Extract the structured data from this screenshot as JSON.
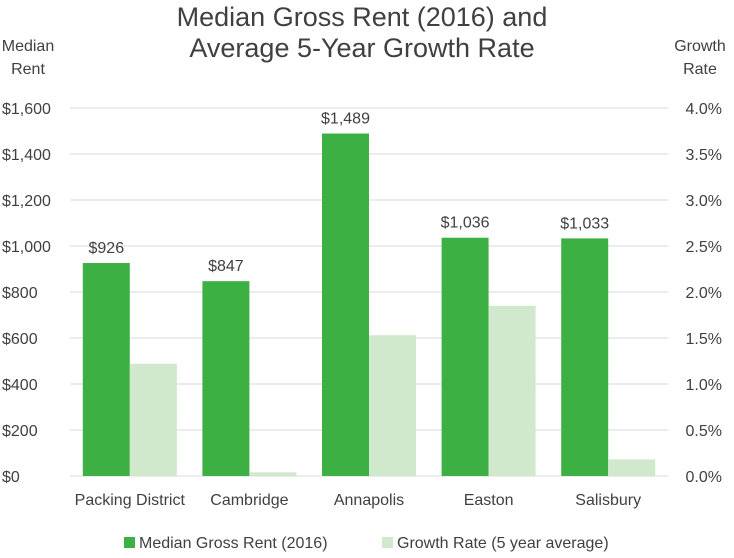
{
  "chart_data": {
    "type": "bar",
    "title_lines": [
      "Median Gross Rent (2016) and",
      "Average 5-Year Growth Rate"
    ],
    "y_left_label_lines": [
      "Median",
      "Rent"
    ],
    "y_right_label_lines": [
      "Growth",
      "Rate"
    ],
    "categories": [
      "Packing District",
      "Cambridge",
      "Annapolis",
      "Easton",
      "Salisbury"
    ],
    "series": [
      {
        "name": "Median Gross Rent (2016)",
        "axis": "left",
        "color": "#3cb043",
        "values": [
          926,
          847,
          1489,
          1036,
          1033
        ],
        "data_labels": [
          "$926",
          "$847",
          "$1,489",
          "$1,036",
          "$1,033"
        ]
      },
      {
        "name": "Growth Rate (5 year average)",
        "axis": "right",
        "color": "#d0e8cc",
        "values": [
          1.22,
          0.04,
          1.53,
          1.85,
          0.18
        ]
      }
    ],
    "y_left": {
      "min": 0,
      "max": 1600,
      "ticks": [
        0,
        200,
        400,
        600,
        800,
        1000,
        1200,
        1400,
        1600
      ],
      "tick_labels": [
        "$0",
        "$200",
        "$400",
        "$600",
        "$800",
        "$1,000",
        "$1,200",
        "$1,400",
        "$1,600"
      ]
    },
    "y_right": {
      "min": 0,
      "max": 4.0,
      "ticks": [
        0,
        0.5,
        1.0,
        1.5,
        2.0,
        2.5,
        3.0,
        3.5,
        4.0
      ],
      "tick_labels": [
        "0.0%",
        "0.5%",
        "1.0%",
        "1.5%",
        "2.0%",
        "2.5%",
        "3.0%",
        "3.5%",
        "4.0%"
      ]
    },
    "grid": true,
    "legend_position": "bottom"
  }
}
